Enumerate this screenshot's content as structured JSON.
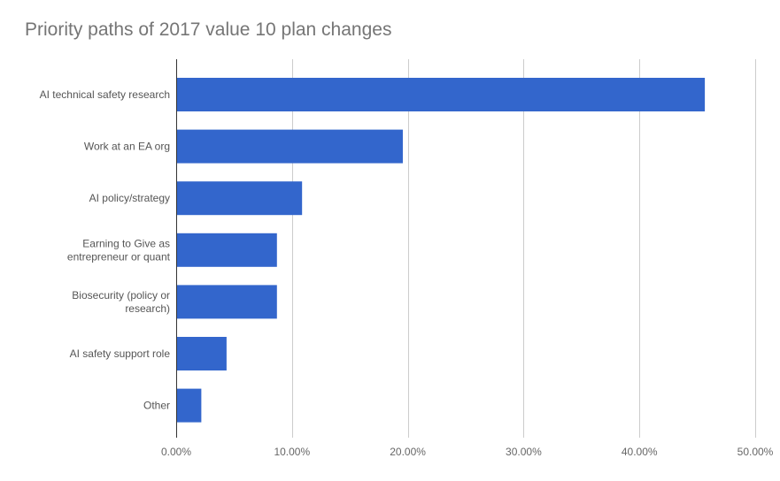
{
  "chart_data": {
    "type": "bar",
    "orientation": "horizontal",
    "title": "Priority paths of 2017 value 10 plan changes",
    "xlabel": "",
    "ylabel": "",
    "categories": [
      [
        "AI technical safety research"
      ],
      [
        "Work at an EA org"
      ],
      [
        "AI policy/strategy"
      ],
      [
        "Earning to Give as",
        "entrepreneur or quant"
      ],
      [
        "Biosecurity (policy or",
        "research)"
      ],
      [
        "AI safety support role"
      ],
      [
        "Other"
      ]
    ],
    "values": [
      45.65,
      19.57,
      10.87,
      8.7,
      8.7,
      4.35,
      2.17
    ],
    "xlim": [
      0,
      50
    ],
    "x_ticks": [
      0,
      10,
      20,
      30,
      40,
      50
    ],
    "x_tick_labels": [
      "0.00%",
      "10.00%",
      "20.00%",
      "30.00%",
      "40.00%",
      "50.00%"
    ],
    "grid": true,
    "bar_color": "#3366cc"
  }
}
